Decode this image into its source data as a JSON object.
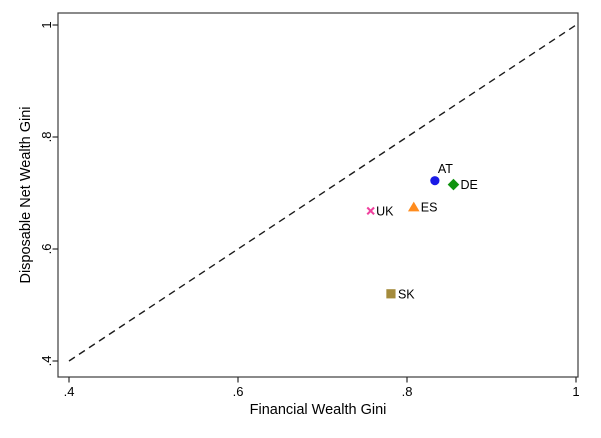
{
  "figure": {
    "background_color": "#ffffff",
    "plot_border_color": "#3c3c3c",
    "tick_color": "#2a2a2a",
    "text_color": "#000000"
  },
  "chart_data": {
    "type": "scatter",
    "title": "",
    "xlabel": "Financial Wealth Gini",
    "ylabel": "Disposable Net Wealth Gini",
    "xlim": [
      0.4,
      1.0
    ],
    "ylim": [
      0.4,
      1.0
    ],
    "grid": false,
    "legend": false,
    "x_ticks": {
      "values": [
        0.4,
        0.6,
        0.8,
        1.0
      ],
      "labels": [
        ".4",
        ".6",
        ".8",
        "1"
      ]
    },
    "y_ticks": {
      "values": [
        0.4,
        0.6,
        0.8,
        1.0
      ],
      "labels": [
        ".4",
        ".6",
        ".8",
        "1"
      ]
    },
    "reference_line": {
      "meaning": "45-degree line (y = x)",
      "from": [
        0.4,
        0.4
      ],
      "to": [
        1.0,
        1.0
      ],
      "style": "dashed",
      "color": "#1c1c1c"
    },
    "series": [
      {
        "name": "AT",
        "x": 0.833,
        "y": 0.722,
        "marker": "circle",
        "color": "#1a1ae6",
        "label_position": "above-right"
      },
      {
        "name": "DE",
        "x": 0.855,
        "y": 0.715,
        "marker": "diamond",
        "color": "#109310",
        "label_position": "right"
      },
      {
        "name": "ES",
        "x": 0.808,
        "y": 0.675,
        "marker": "triangle-up",
        "color": "#ff8c1e",
        "label_position": "right"
      },
      {
        "name": "UK",
        "x": 0.757,
        "y": 0.668,
        "marker": "x",
        "color": "#f0419e",
        "label_position": "right"
      },
      {
        "name": "SK",
        "x": 0.781,
        "y": 0.52,
        "marker": "square",
        "color": "#a48b3c",
        "label_position": "right"
      }
    ]
  }
}
